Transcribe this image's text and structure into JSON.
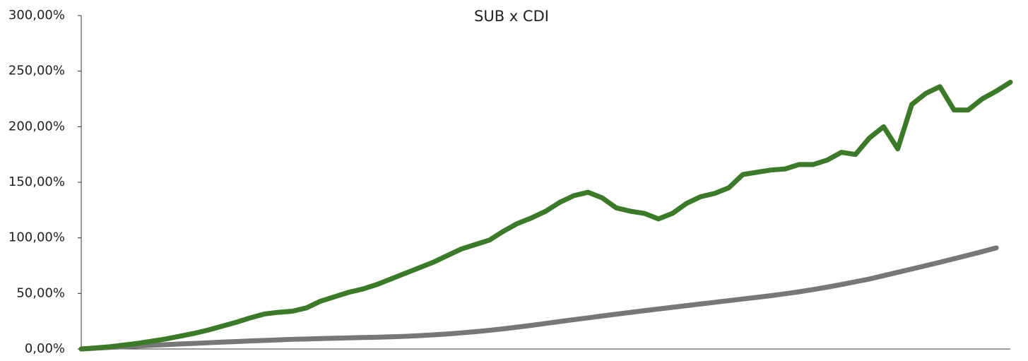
{
  "chart_data": {
    "type": "line",
    "title": "SUB x CDI",
    "x": [
      0,
      1,
      2,
      3,
      4,
      5,
      6,
      7,
      8,
      9,
      10,
      11,
      12,
      13,
      14,
      15,
      16,
      17,
      18,
      19,
      20,
      21,
      22,
      23,
      24,
      25,
      26,
      27,
      28,
      29,
      30,
      31,
      32,
      33,
      34,
      35,
      36,
      37,
      38,
      39,
      40,
      41,
      42,
      43,
      44,
      45,
      46,
      47,
      48,
      49,
      50,
      51,
      52,
      53,
      54,
      55,
      56,
      57,
      58,
      59,
      60,
      61,
      62,
      63,
      64,
      65,
      66
    ],
    "xlim": [
      0,
      66
    ],
    "series": [
      {
        "color": "#3a7a28",
        "values": [
          0,
          1,
          2,
          3.5,
          5,
          7,
          9,
          11.5,
          14,
          17,
          20.5,
          24,
          28,
          31.5,
          33,
          34,
          37,
          43,
          47,
          51,
          54,
          58,
          63,
          68,
          73,
          78,
          84,
          90,
          94,
          98,
          106,
          113,
          118,
          124,
          132,
          138,
          141,
          136,
          127,
          124,
          122,
          117,
          122,
          131,
          137,
          140,
          145,
          157,
          159,
          161,
          162,
          166,
          166,
          170,
          177,
          175,
          190,
          200,
          180,
          220,
          230,
          236,
          215,
          215,
          225,
          232,
          240
        ]
      },
      {
        "color": "#777777",
        "values": [
          0,
          0.7,
          1.4,
          2,
          2.7,
          3.3,
          3.9,
          4.5,
          5,
          5.6,
          6.2,
          6.7,
          7.2,
          7.7,
          8.2,
          8.7,
          9,
          9.4,
          9.7,
          10,
          10.3,
          10.6,
          11,
          11.4,
          12,
          12.7,
          13.5,
          14.5,
          15.6,
          16.8,
          18.2,
          19.7,
          21.3,
          23,
          24.7,
          26.4,
          28,
          29.7,
          31.3,
          32.9,
          34.5,
          36,
          37.5,
          39,
          40.5,
          42,
          43.5,
          45,
          46.5,
          48,
          49.7,
          51.5,
          53.5,
          55.7,
          58,
          60.5,
          63,
          66,
          69,
          72,
          75,
          78,
          81.2,
          84.4,
          87.6,
          91,
          null
        ]
      }
    ],
    "ylim": [
      0,
      300
    ],
    "yticks": [
      {
        "value": 0,
        "label": "0,00%"
      },
      {
        "value": 50,
        "label": "50,00%"
      },
      {
        "value": 100,
        "label": "100,00%"
      },
      {
        "value": 150,
        "label": "150,00%"
      },
      {
        "value": 200,
        "label": "200,00%"
      },
      {
        "value": 250,
        "label": "250,00%"
      },
      {
        "value": 300,
        "label": "300,00%"
      }
    ],
    "grid": false
  }
}
